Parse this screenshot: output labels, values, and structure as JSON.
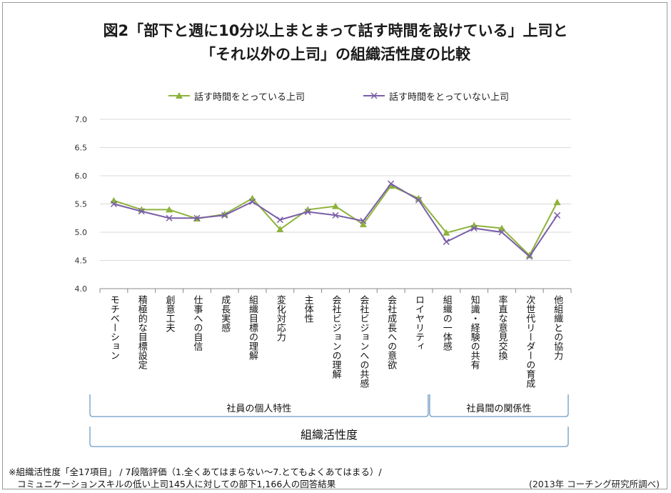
{
  "title_line1": "図2「部下と週に10分以上まとまって話す時間を設けている」上司と",
  "title_line2": "「それ以外の上司」の組織活性度の比較",
  "footnote_line1": "※組織活性度「全17項目」 / 7段階評価（1.全くあてはまらない〜7.とてもよくあてはまる）/",
  "footnote_line2": "コミュニケーションスキルの低い上司145人に対しての部下1,166人の回答結果",
  "source": "(2013年 コーチング研究所調べ)",
  "colors": {
    "series_a": "#8db33a",
    "series_b": "#7a5ea8",
    "axis": "#888888",
    "grid": "#d9d9d9",
    "group_line": "#6a9bc7"
  },
  "chart_data": {
    "type": "line",
    "categories": [
      "モチベーション",
      "積極的な目標設定",
      "創意工夫",
      "仕事への自信",
      "成長実感",
      "組織目標の理解",
      "変化対応力",
      "主体性",
      "会社ビジョンの理解",
      "会社ビジョンへの共感",
      "会社成長への意欲",
      "ロイヤリティ",
      "組織の一体感",
      "知識・経験の共有",
      "率直な意見交換",
      "次世代リーダーの育成",
      "他組織との協力"
    ],
    "series": [
      {
        "name": "話す時間をとっている上司",
        "marker": "triangle",
        "values": [
          5.56,
          5.4,
          5.4,
          5.24,
          5.32,
          5.6,
          5.05,
          5.4,
          5.46,
          5.14,
          5.82,
          5.6,
          4.99,
          5.12,
          5.07,
          4.59,
          5.53
        ]
      },
      {
        "name": "話す時間をとっていない上司",
        "marker": "x",
        "values": [
          5.5,
          5.37,
          5.25,
          5.25,
          5.3,
          5.54,
          5.22,
          5.36,
          5.3,
          5.2,
          5.86,
          5.57,
          4.83,
          5.07,
          5.0,
          4.57,
          5.3
        ]
      }
    ],
    "ylim": [
      4.0,
      7.0
    ],
    "yticks": [
      "4.0",
      "4.5",
      "5.0",
      "5.5",
      "6.0",
      "6.5",
      "7.0"
    ],
    "groups": [
      {
        "label": "社員の個人特性",
        "from": 0,
        "to": 11
      },
      {
        "label": "社員間の関係性",
        "from": 12,
        "to": 16
      }
    ],
    "overall_group": "組織活性度",
    "grid": true,
    "legend_position": "top"
  }
}
